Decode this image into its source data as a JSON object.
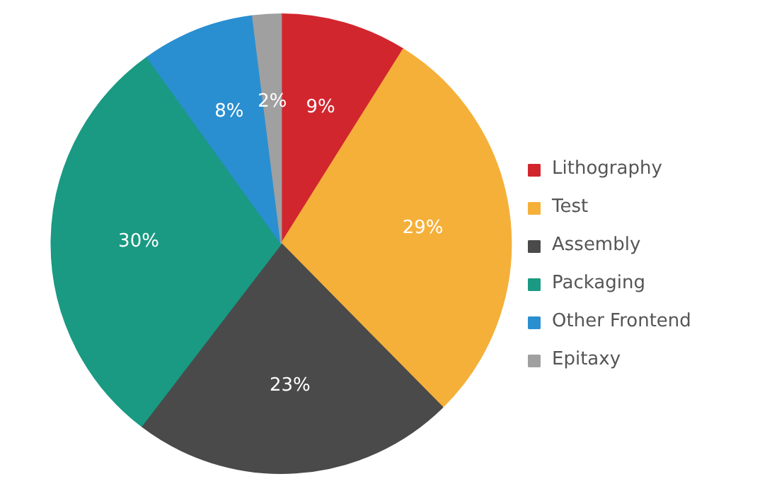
{
  "chart_data": {
    "type": "pie",
    "categories": [
      "Lithography",
      "Test",
      "Assembly",
      "Packaging",
      "Other Frontend",
      "Epitaxy"
    ],
    "values": [
      9,
      29,
      23,
      30,
      8,
      2
    ],
    "colors": [
      "#d2262f",
      "#f5b03a",
      "#4a4a4a",
      "#1a9a82",
      "#2a8fd0",
      "#a0a0a0"
    ],
    "value_labels": [
      "9%",
      "29%",
      "23%",
      "30%",
      "8%",
      "2%"
    ],
    "legend": "right"
  }
}
